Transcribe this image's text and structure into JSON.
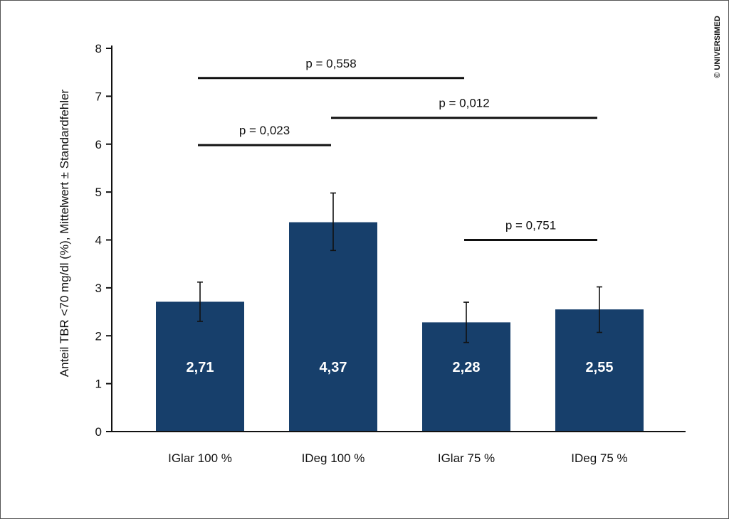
{
  "copyright": "© UNIVERSIMED",
  "chart_data": {
    "type": "bar",
    "title": "",
    "xlabel": "",
    "ylabel": "Anteil TBR  <70 mg/dl (%), Mittelwert ± Standardfehler",
    "ylim": [
      0,
      8
    ],
    "yticks": [
      0,
      1,
      2,
      3,
      4,
      5,
      6,
      7,
      8
    ],
    "grid": false,
    "bar_color": "#173f6b",
    "categories": [
      "IGlar 100 %",
      "IDeg 100 %",
      "IGlar 75 %",
      "IDeg 75 %"
    ],
    "values": [
      2.71,
      4.37,
      2.28,
      2.55
    ],
    "value_labels": [
      "2,71",
      "4,37",
      "2,28",
      "2,55"
    ],
    "error_bars": [
      {
        "low": 2.3,
        "high": 3.12
      },
      {
        "low": 3.78,
        "high": 4.98
      },
      {
        "low": 1.86,
        "high": 2.7
      },
      {
        "low": 2.07,
        "high": 3.02
      }
    ],
    "significance": [
      {
        "from": 0,
        "to": 2,
        "y": 7.38,
        "label": "p = 0,558"
      },
      {
        "from": 1,
        "to": 3,
        "y": 6.55,
        "label": "p = 0,012"
      },
      {
        "from": 0,
        "to": 1,
        "y": 5.98,
        "label": "p = 0,023"
      },
      {
        "from": 2,
        "to": 3,
        "y": 4.0,
        "label": "p = 0,751"
      }
    ]
  }
}
